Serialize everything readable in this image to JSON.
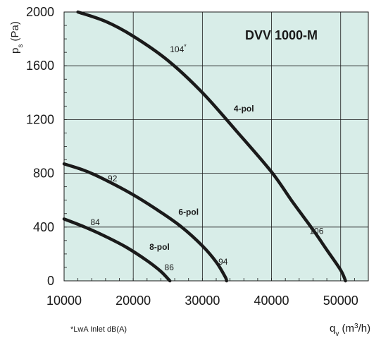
{
  "chart_data": {
    "type": "line",
    "title": "DVV 1000-M",
    "xlabel_html": "q<tspan baseline-shift=\"sub\" font-size=\"10\">v</tspan> (m<tspan baseline-shift=\"super\" font-size=\"10\">3</tspan>/h)",
    "xlabel": "qv (m3/h)",
    "ylabel": "ps (Pa)",
    "xlim": [
      10000,
      54000
    ],
    "ylim": [
      0,
      2000
    ],
    "x_ticks": [
      10000,
      20000,
      30000,
      40000,
      50000
    ],
    "y_ticks": [
      0,
      400,
      800,
      1200,
      1600,
      2000
    ],
    "grid": true,
    "background_color": "#d8ede8",
    "line_color": "#1a1a1a",
    "footnote": "*LwA Inlet dB(A)",
    "series": [
      {
        "name": "4-pol",
        "points": [
          [
            12000,
            2000
          ],
          [
            16000,
            1930
          ],
          [
            20000,
            1820
          ],
          [
            25000,
            1640
          ],
          [
            30000,
            1400
          ],
          [
            35000,
            1110
          ],
          [
            40000,
            810
          ],
          [
            43000,
            590
          ],
          [
            46000,
            380
          ],
          [
            48000,
            230
          ],
          [
            50000,
            80
          ],
          [
            50700,
            0
          ]
        ],
        "levels": [
          {
            "x": 26500,
            "y": 1700,
            "text": "104",
            "sup": "*"
          },
          {
            "x": 46500,
            "y": 350,
            "text": "106"
          }
        ]
      },
      {
        "name": "6-pol",
        "points": [
          [
            10000,
            870
          ],
          [
            13000,
            820
          ],
          [
            16000,
            750
          ],
          [
            20000,
            640
          ],
          [
            24000,
            510
          ],
          [
            27000,
            400
          ],
          [
            30000,
            260
          ],
          [
            32000,
            140
          ],
          [
            33300,
            30
          ],
          [
            33500,
            0
          ]
        ],
        "levels": [
          {
            "x": 17000,
            "y": 740,
            "text": "92"
          },
          {
            "x": 33000,
            "y": 120,
            "text": "94"
          }
        ]
      },
      {
        "name": "8-pol",
        "points": [
          [
            10000,
            460
          ],
          [
            13000,
            400
          ],
          [
            16000,
            330
          ],
          [
            19000,
            250
          ],
          [
            22000,
            150
          ],
          [
            24000,
            70
          ],
          [
            25300,
            0
          ]
        ],
        "levels": [
          {
            "x": 14500,
            "y": 415,
            "text": "84"
          },
          {
            "x": 25200,
            "y": 80,
            "text": "86"
          }
        ]
      }
    ],
    "curve_label_positions": [
      {
        "x": 36000,
        "y": 1260
      },
      {
        "x": 28000,
        "y": 490
      },
      {
        "x": 23800,
        "y": 230
      }
    ]
  }
}
